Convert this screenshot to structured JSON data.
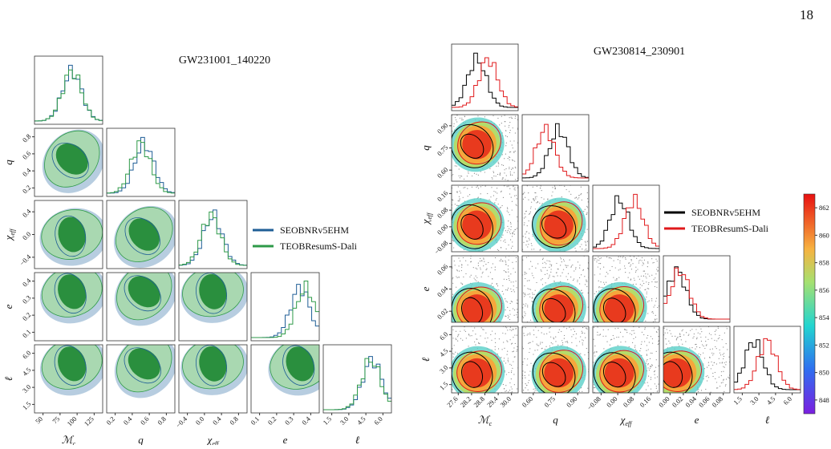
{
  "page_number": "18",
  "figures": [
    {
      "title": "GW231001_140220",
      "legend": [
        {
          "name": "SEOBNRv5EHM",
          "color": "#1f5e96"
        },
        {
          "name": "TEOBResumS-Dali",
          "color": "#2e9a48"
        }
      ],
      "params": [
        {
          "main": "ℳ",
          "sub": "c",
          "xticks": [
            "50",
            "75",
            "100",
            "125"
          ],
          "yticks": []
        },
        {
          "main": "q",
          "sub": "",
          "xticks": [
            "0.2",
            "0.4",
            "0.6",
            "0.8"
          ],
          "yticks": [
            "0.2",
            "0.4",
            "0.6",
            "0.8"
          ]
        },
        {
          "main": "χ",
          "sub": "eff",
          "xticks": [
            "−0.4",
            "0.0",
            "0.4",
            "0.8"
          ],
          "yticks": [
            "−0.4",
            "0.0",
            "0.4"
          ]
        },
        {
          "main": "e",
          "sub": "",
          "xticks": [
            "0.1",
            "0.2",
            "0.3",
            "0.4"
          ],
          "yticks": [
            "0.1",
            "0.2",
            "0.3",
            "0.4"
          ]
        },
        {
          "main": "ℓ",
          "sub": "",
          "xticks": [
            "1.5",
            "3.0",
            "4.5",
            "6.0"
          ],
          "yticks": [
            "1.5",
            "3.0",
            "4.5",
            "6.0"
          ]
        }
      ]
    },
    {
      "title": "GW230814_230901",
      "legend": [
        {
          "name": "SEOBNRv5EHM",
          "color": "#000000"
        },
        {
          "name": "TEOBResumS-Dali",
          "color": "#e0191b"
        }
      ],
      "params": [
        {
          "main": "ℳ",
          "sub": "c",
          "xticks": [
            "27.6",
            "28.2",
            "28.8",
            "29.4",
            "30.0"
          ],
          "yticks": []
        },
        {
          "main": "q",
          "sub": "",
          "xticks": [
            "0.60",
            "0.75",
            "0.90"
          ],
          "yticks": [
            "0.60",
            "0.75",
            "0.90"
          ]
        },
        {
          "main": "χ",
          "sub": "eff",
          "xticks": [
            "−0.08",
            "0.00",
            "0.08",
            "0.16"
          ],
          "yticks": [
            "−0.08",
            "0.00",
            "0.08",
            "0.16"
          ]
        },
        {
          "main": "e",
          "sub": "",
          "xticks": [
            "0.00",
            "0.02",
            "0.04",
            "0.06",
            "0.08"
          ],
          "yticks": [
            "0.02",
            "0.04",
            "0.06"
          ]
        },
        {
          "main": "ℓ",
          "sub": "",
          "xticks": [
            "1.5",
            "3.0",
            "4.5",
            "6.0"
          ],
          "yticks": [
            "1.5",
            "3.0",
            "4.5",
            "6.0"
          ]
        }
      ],
      "colorbar_ticks": [
        "848",
        "850",
        "852",
        "854",
        "856",
        "858",
        "860",
        "862"
      ]
    }
  ]
}
